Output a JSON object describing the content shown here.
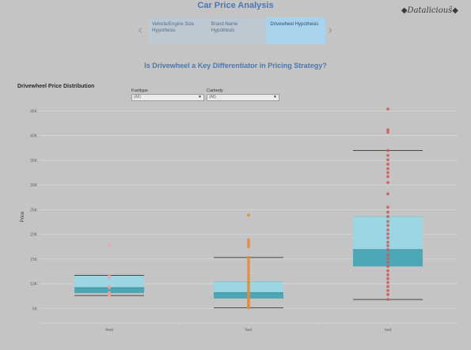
{
  "app": {
    "title": "Car Price Analysis",
    "brand": "◆Dataliciouŝ◆"
  },
  "nav": {
    "prev_icon": "chevron-left-icon",
    "next_icon": "chevron-right-icon",
    "tabs": [
      {
        "label": "Vehicle/Engine Size Hypothesis",
        "active": false
      },
      {
        "label": "Brand Name Hypothesis",
        "active": false
      },
      {
        "label": "Drivewheel Hypothesis",
        "active": true
      }
    ]
  },
  "question": "Is Drivewheel a Key Differentiator in Pricing Strategy?",
  "filters": [
    {
      "label": "Fueltype",
      "value": "(All)"
    },
    {
      "label": "Carbody",
      "value": "(All)"
    }
  ],
  "chart_data": {
    "type": "box",
    "title": "Drivewheel Price Distribution",
    "ylabel": "Price",
    "xlabel": "",
    "ylim": [
      2000,
      47000
    ],
    "y_ticks": [
      5000,
      10000,
      15000,
      20000,
      25000,
      30000,
      35000,
      40000,
      45000
    ],
    "y_tick_labels": [
      "5K",
      "10K",
      "15K",
      "20K",
      "25K",
      "30K",
      "35K",
      "40K",
      "45K"
    ],
    "grid": true,
    "categories": [
      "4wd",
      "fwd",
      "rwd"
    ],
    "colors": {
      "box_upper": "#9dd6e3",
      "box_lower": "#4ba6b5",
      "whisker": "#333333"
    },
    "boxes": [
      {
        "category": "4wd",
        "whisker_low": 7600,
        "q1": 8100,
        "median": 9200,
        "q3": 11700,
        "whisker_high": 11700,
        "point_color": "#f0a0a0",
        "points": [
          7600,
          7800,
          8000,
          8200,
          9200,
          9500,
          11200,
          11700,
          17800
        ]
      },
      {
        "category": "fwd",
        "whisker_low": 5100,
        "q1": 7000,
        "median": 8200,
        "q3": 10400,
        "whisker_high": 15300,
        "point_color": "#e88a2e",
        "points": [
          5100,
          5300,
          5600,
          5900,
          6200,
          6500,
          6800,
          7000,
          7300,
          7600,
          7900,
          8200,
          8500,
          8900,
          9300,
          9700,
          10100,
          10400,
          10800,
          11300,
          11800,
          12400,
          12900,
          13400,
          14000,
          14500,
          15000,
          15300,
          17500,
          18000,
          18500,
          18900,
          23900
        ]
      },
      {
        "category": "rwd",
        "whisker_low": 6800,
        "q1": 13500,
        "median": 16900,
        "q3": 23600,
        "whisker_high": 37000,
        "point_color": "#d05858",
        "points": [
          6800,
          7800,
          8600,
          9400,
          10200,
          11000,
          11800,
          12600,
          13500,
          14300,
          15100,
          15900,
          16900,
          17700,
          18400,
          19300,
          20100,
          20900,
          21800,
          22600,
          23600,
          24500,
          25500,
          28200,
          30500,
          31700,
          32500,
          33300,
          34200,
          35100,
          36000,
          37000,
          40700,
          41200,
          45400
        ]
      }
    ]
  }
}
